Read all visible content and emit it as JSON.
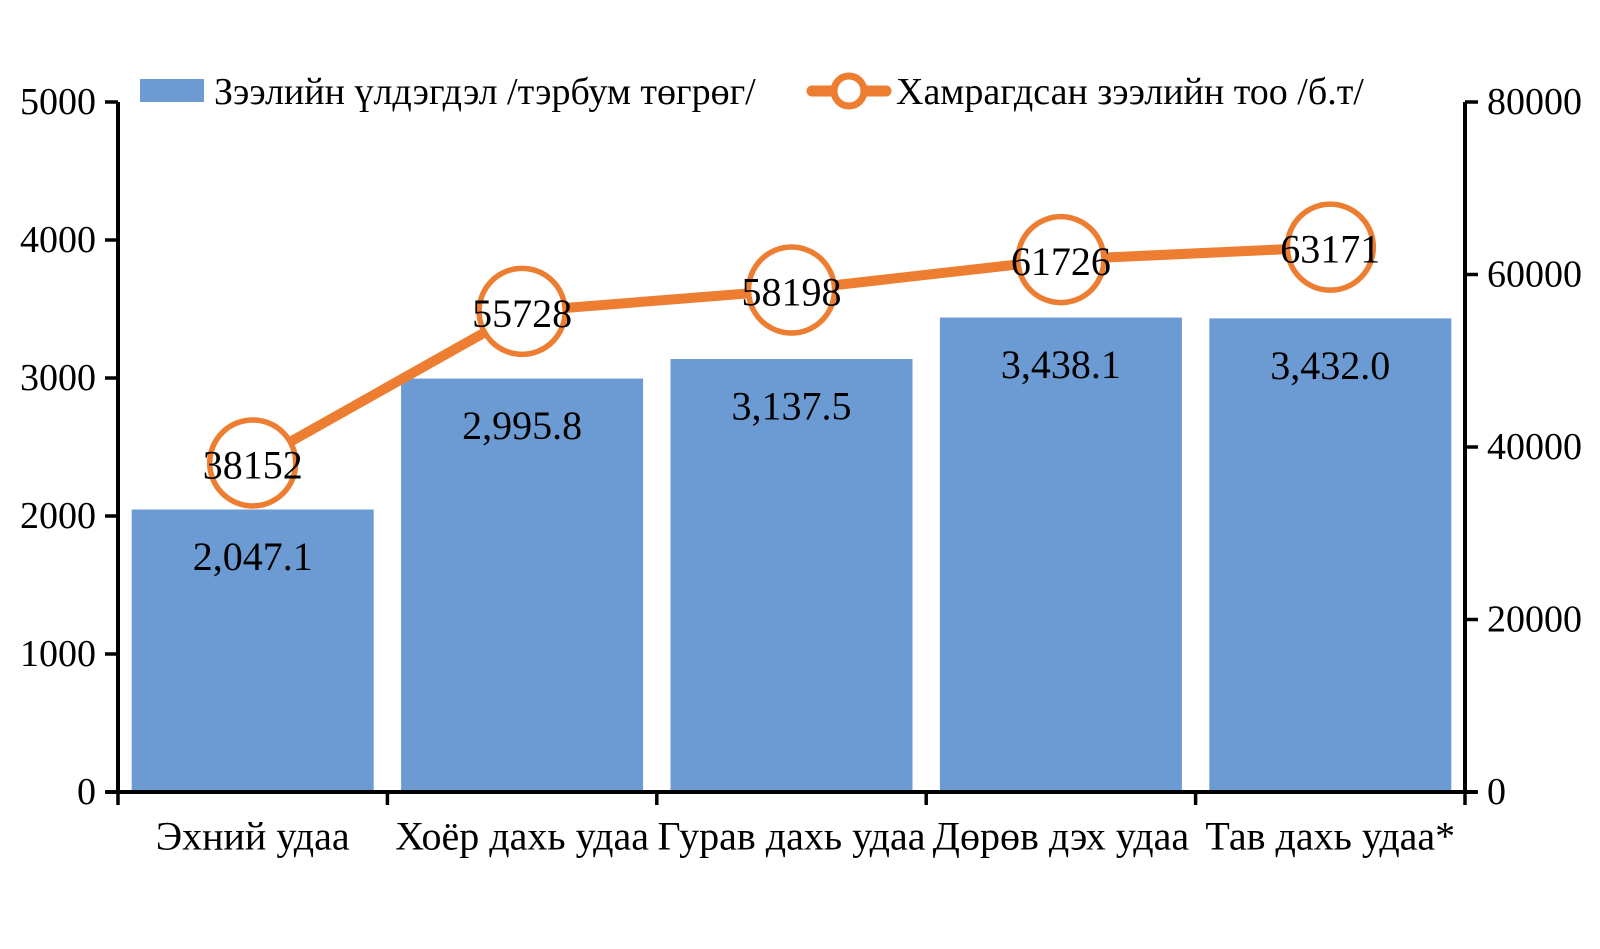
{
  "chart_data": {
    "type": "bar+line combo",
    "title": "",
    "categories": [
      "Эхний удаа",
      "Хоёр дахь удаа",
      "Гурав дахь удаа",
      "Дөрөв дэх удаа",
      "Тав дахь удаа*"
    ],
    "series": [
      {
        "name": "Зээлийн үлдэгдэл /тэрбум төгрөг/",
        "type": "bar",
        "axis": "left",
        "color": "#6C9BD3",
        "values": [
          2047.1,
          2995.8,
          3137.5,
          3438.1,
          3432.0
        ],
        "labels": [
          "2,047.1",
          "2,995.8",
          "3,137.5",
          "3,438.1",
          "3,432.0"
        ]
      },
      {
        "name": "Хамрагдсан зээлийн тоо /б.т/",
        "type": "line",
        "axis": "right",
        "color": "#ED7D31",
        "marker": "open-circle",
        "values": [
          38152,
          55728,
          58198,
          61726,
          63171
        ],
        "labels": [
          "38152",
          "55728",
          "58198",
          "61726",
          "63171"
        ]
      }
    ],
    "left_axis": {
      "min": 0,
      "max": 5000,
      "ticks": [
        0,
        1000,
        2000,
        3000,
        4000,
        5000
      ],
      "tick_labels": [
        "0",
        "1000",
        "2000",
        "3000",
        "4000",
        "5000"
      ]
    },
    "right_axis": {
      "min": 0,
      "max": 80000,
      "ticks": [
        0,
        20000,
        40000,
        60000,
        80000
      ],
      "tick_labels": [
        "0",
        "20000",
        "40000",
        "60000",
        "80000"
      ]
    },
    "grid": false,
    "legend_position": "top",
    "axis_color": "#000000",
    "background": "#ffffff"
  }
}
